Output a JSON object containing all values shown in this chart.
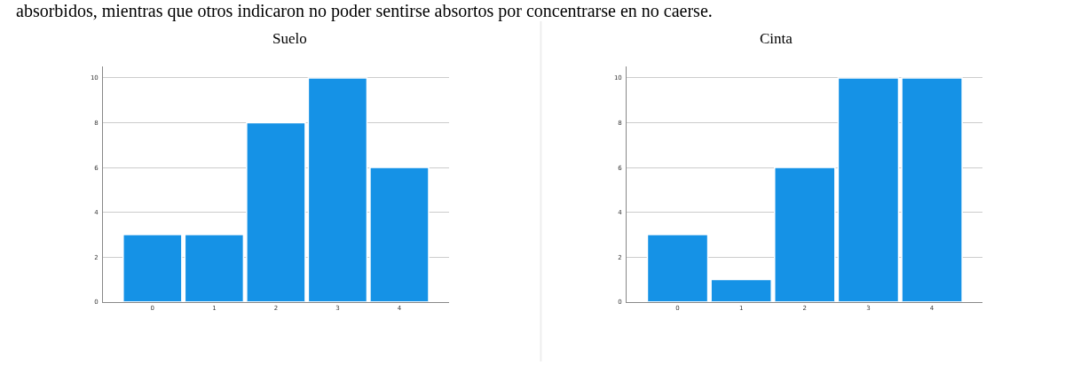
{
  "chart_data": [
    {
      "type": "bar",
      "title": "Suelo",
      "categories": [
        "0",
        "1",
        "2",
        "3",
        "4"
      ],
      "values": [
        3,
        3,
        8,
        10,
        6
      ],
      "color": "#1592e6",
      "ylim": [
        0,
        10.5
      ],
      "yticks": [
        0,
        2,
        4,
        6,
        8,
        10
      ],
      "grid": "y",
      "annotations": [
        "absorbidos, mientras que otros indicaron no poder sentirse absortos por concentrarse en no caerse."
      ]
    },
    {
      "type": "bar",
      "title": "Cinta",
      "categories": [
        "0",
        "1",
        "2",
        "3",
        "4"
      ],
      "values": [
        3,
        1,
        6,
        10,
        10
      ],
      "color": "#1592e6",
      "ylim": [
        0,
        10.5
      ],
      "yticks": [
        0,
        2,
        4,
        6,
        8,
        10
      ],
      "grid": "y"
    }
  ]
}
